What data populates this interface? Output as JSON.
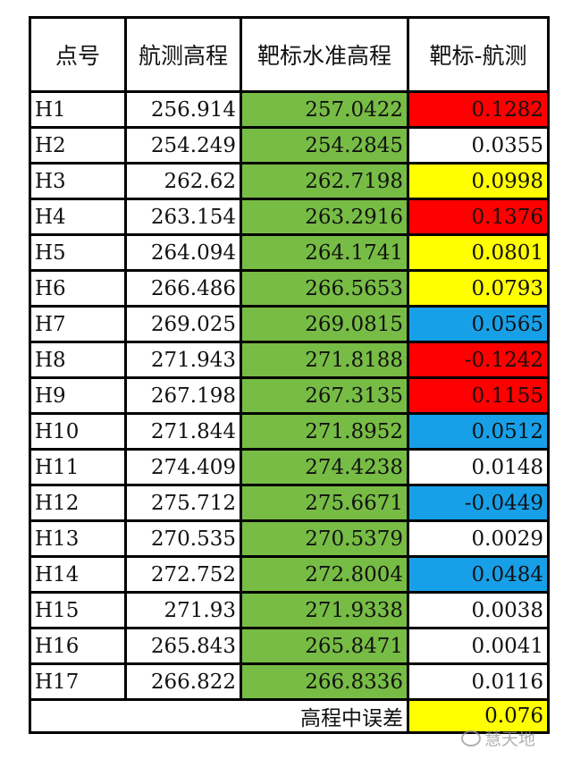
{
  "colors": {
    "green": "#77bc45",
    "red": "#ff0000",
    "yellow": "#ffff00",
    "blue": "#17a0e8",
    "white": "#ffffff"
  },
  "table": {
    "headers": [
      "点号",
      "航测高程",
      "靶标水准高程",
      "靶标-航测"
    ],
    "rows": [
      {
        "id": "H1",
        "aerial": "256.914",
        "target": "257.0422",
        "diff": "0.1282",
        "diff_color": "red"
      },
      {
        "id": "H2",
        "aerial": "254.249",
        "target": "254.2845",
        "diff": "0.0355",
        "diff_color": "white"
      },
      {
        "id": "H3",
        "aerial": "262.62",
        "target": "262.7198",
        "diff": "0.0998",
        "diff_color": "yellow"
      },
      {
        "id": "H4",
        "aerial": "263.154",
        "target": "263.2916",
        "diff": "0.1376",
        "diff_color": "red"
      },
      {
        "id": "H5",
        "aerial": "264.094",
        "target": "264.1741",
        "diff": "0.0801",
        "diff_color": "yellow"
      },
      {
        "id": "H6",
        "aerial": "266.486",
        "target": "266.5653",
        "diff": "0.0793",
        "diff_color": "yellow"
      },
      {
        "id": "H7",
        "aerial": "269.025",
        "target": "269.0815",
        "diff": "0.0565",
        "diff_color": "blue"
      },
      {
        "id": "H8",
        "aerial": "271.943",
        "target": "271.8188",
        "diff": "-0.1242",
        "diff_color": "red"
      },
      {
        "id": "H9",
        "aerial": "267.198",
        "target": "267.3135",
        "diff": "0.1155",
        "diff_color": "red"
      },
      {
        "id": "H10",
        "aerial": "271.844",
        "target": "271.8952",
        "diff": "0.0512",
        "diff_color": "blue"
      },
      {
        "id": "H11",
        "aerial": "274.409",
        "target": "274.4238",
        "diff": "0.0148",
        "diff_color": "white"
      },
      {
        "id": "H12",
        "aerial": "275.712",
        "target": "275.6671",
        "diff": "-0.0449",
        "diff_color": "blue"
      },
      {
        "id": "H13",
        "aerial": "270.535",
        "target": "270.5379",
        "diff": "0.0029",
        "diff_color": "white"
      },
      {
        "id": "H14",
        "aerial": "272.752",
        "target": "272.8004",
        "diff": "0.0484",
        "diff_color": "blue"
      },
      {
        "id": "H15",
        "aerial": "271.93",
        "target": "271.9338",
        "diff": "0.0038",
        "diff_color": "white"
      },
      {
        "id": "H16",
        "aerial": "265.843",
        "target": "265.8471",
        "diff": "0.0041",
        "diff_color": "white"
      },
      {
        "id": "H17",
        "aerial": "266.822",
        "target": "266.8336",
        "diff": "0.0116",
        "diff_color": "white"
      }
    ],
    "summary": {
      "label": "高程中误差",
      "value": "0.076",
      "value_color": "yellow"
    }
  },
  "watermark": {
    "text": "慧天地"
  }
}
